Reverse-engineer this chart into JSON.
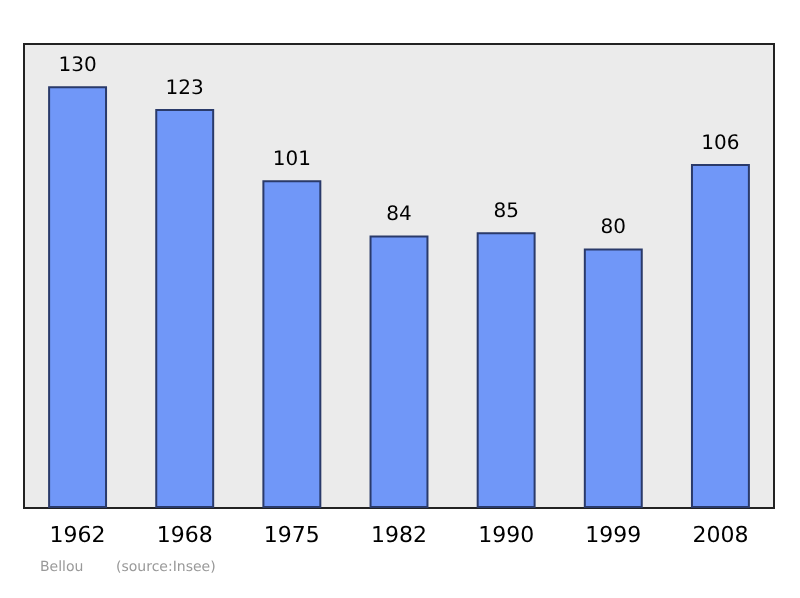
{
  "chart_data": {
    "type": "bar",
    "categories": [
      "1962",
      "1968",
      "1975",
      "1982",
      "1990",
      "1999",
      "2008"
    ],
    "values": [
      130,
      123,
      101,
      84,
      85,
      80,
      106
    ],
    "color": "#7097f8",
    "data_labels": true,
    "ylim": [
      0,
      143
    ],
    "tick_labels": "x",
    "annotations": [
      "Bellou",
      "(source:Insee)"
    ]
  }
}
